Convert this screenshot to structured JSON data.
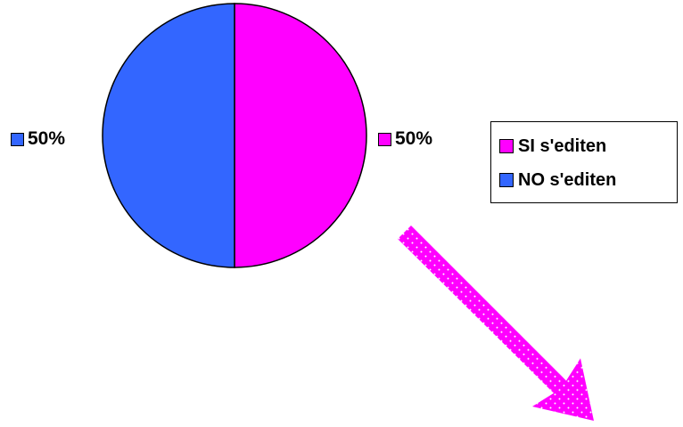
{
  "chart_data": {
    "type": "pie",
    "title": "",
    "series": [
      {
        "name": "SI s'editen",
        "value": 50,
        "label": "50%",
        "color": "#ff00ff"
      },
      {
        "name": "NO s'editen",
        "value": 50,
        "label": "50%",
        "color": "#3366ff"
      }
    ],
    "legend": {
      "placement": "right",
      "items": [
        "SI s'editen",
        "NO s'editen"
      ]
    }
  },
  "decoration": {
    "arrow_icon": "dotted-magenta-arrow-down-right",
    "arrow_color": "#ff00ff"
  }
}
